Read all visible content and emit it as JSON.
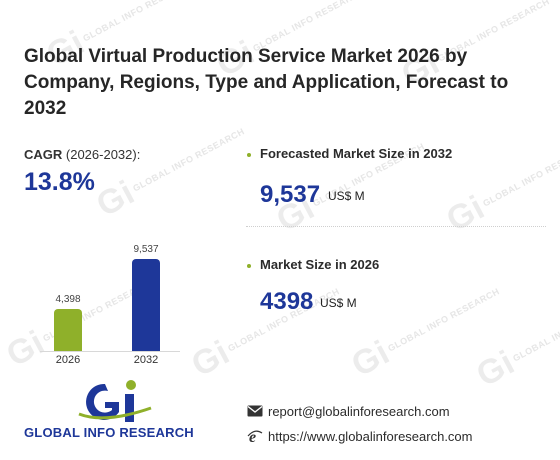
{
  "title": "Global Virtual Production Service Market 2026 by Company, Regions, Type and Application, Forecast to 2032",
  "watermark_text": "GLOBAL INFO RESEARCH",
  "cagr": {
    "label": "CAGR",
    "period": " (2026-2032):",
    "value": "13.8%"
  },
  "chart_data": {
    "type": "bar",
    "categories": [
      "2026",
      "2032"
    ],
    "values": [
      4398,
      9537
    ],
    "value_labels": [
      "4,398",
      "9,537"
    ],
    "colors": [
      "#8fb02a",
      "#1e3799"
    ]
  },
  "forecast": {
    "label": "Forecasted Market Size in 2032",
    "value": "9,537",
    "unit": "US$ M"
  },
  "current": {
    "label": "Market Size in 2026",
    "value": "4398",
    "unit": "US$ M"
  },
  "brand": {
    "name": "GLOBAL INFO RESEARCH",
    "primary_color": "#1e3799",
    "accent_color": "#8fb02a"
  },
  "contact": {
    "email": "report@globalinforesearch.com",
    "website": "https://www.globalinforesearch.com",
    "email_icon": "envelope-icon",
    "web_icon": "internet-explorer-icon"
  }
}
